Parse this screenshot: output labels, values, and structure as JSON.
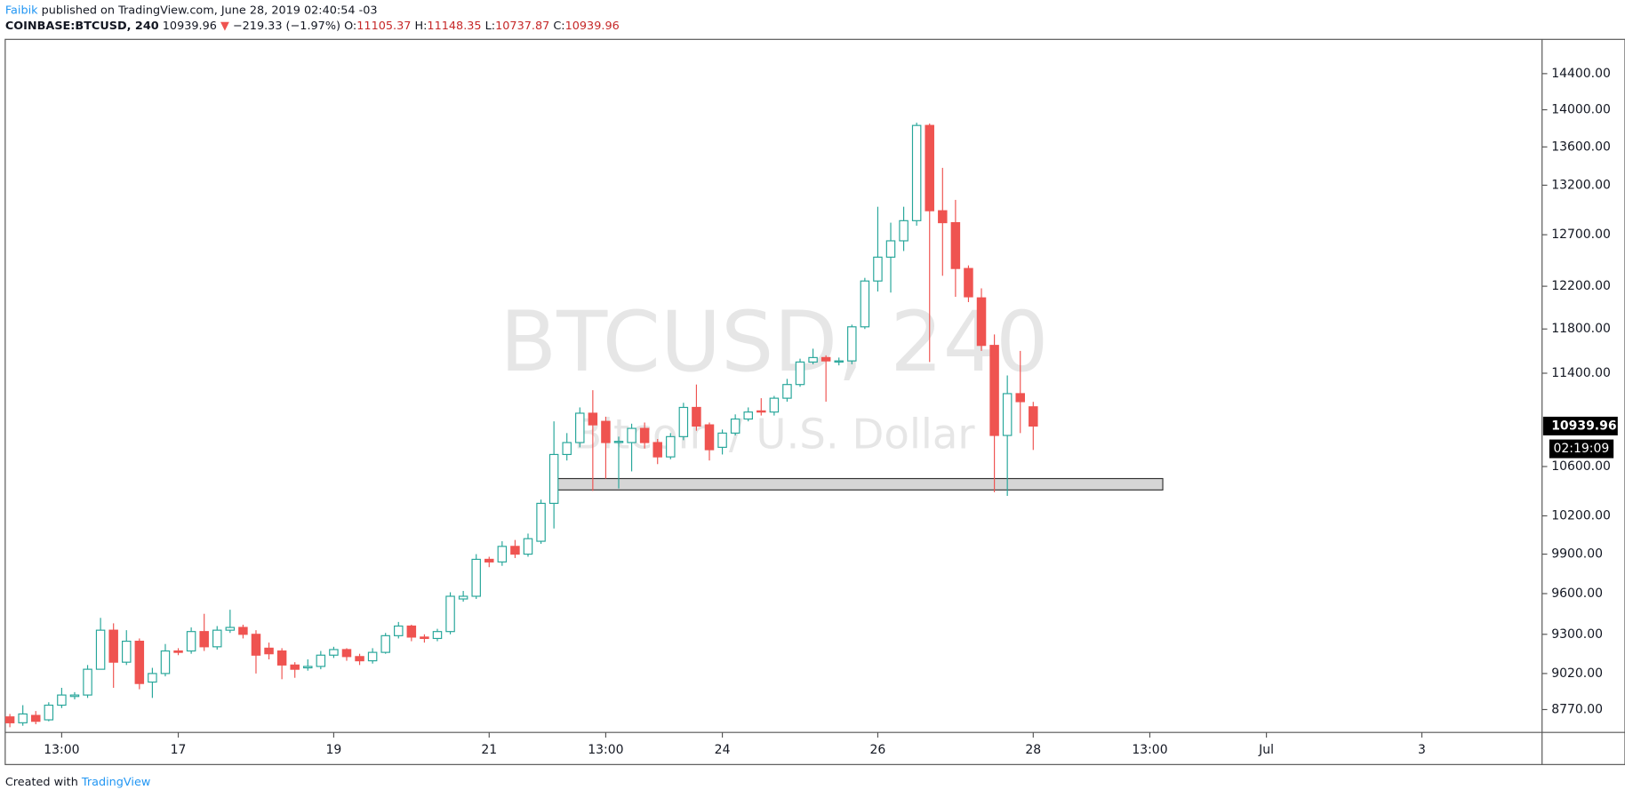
{
  "header": {
    "author": "Faibik",
    "published": "published on TradingView.com, June 28, 2019 02:40:54 -03",
    "symbol": "COINBASE:BTCUSD, 240",
    "last": "10939.96",
    "arrow": "▼",
    "change": "−219.33 (−1.97%)",
    "o_label": "O:",
    "o": "11105.37",
    "h_label": "H:",
    "h": "11148.35",
    "l_label": "L:",
    "l": "10737.87",
    "c_label": "C:",
    "c": "10939.96"
  },
  "footer": {
    "created": "Created with",
    "brand": "TradingView"
  },
  "chart_data": {
    "type": "candlestick",
    "watermark": "BTCUSD, 240",
    "watermark_sub": "Bitcoin / U.S. Dollar",
    "price_label": "10939.96",
    "countdown": "02:19:09",
    "up_color": "#26a69a",
    "down_color": "#ef5350",
    "log_scale": true,
    "ylim": [
      8615,
      14790
    ],
    "yticks": [
      8770,
      9020,
      9300,
      9600,
      9900,
      10200,
      10600,
      11400,
      11800,
      12200,
      12700,
      13200,
      13600,
      14000,
      14400
    ],
    "ytick_labels": [
      "8770.00",
      "9020.00",
      "9300.00",
      "9600.00",
      "9900.00",
      "10200.00",
      "10600.00",
      "11400.00",
      "11800.00",
      "12200.00",
      "12700.00",
      "13200.00",
      "13600.00",
      "14000.00",
      "14400.00"
    ],
    "xticks": [
      {
        "value": 4,
        "label": "13:00"
      },
      {
        "value": 13,
        "label": "17"
      },
      {
        "value": 25,
        "label": "19"
      },
      {
        "value": 37,
        "label": "21"
      },
      {
        "value": 46,
        "label": "13:00"
      },
      {
        "value": 55,
        "label": "24"
      },
      {
        "value": 67,
        "label": "26"
      },
      {
        "value": 79,
        "label": "28"
      },
      {
        "value": 88,
        "label": "13:00"
      },
      {
        "value": 97,
        "label": "Jul"
      },
      {
        "value": 109,
        "label": "3"
      }
    ],
    "zone": {
      "x": [
        41.9,
        89
      ],
      "y": [
        10408,
        10501
      ]
    },
    "open": [
      8720,
      8680,
      8730,
      8700,
      8800,
      8860,
      8870,
      9050,
      9330,
      9100,
      9250,
      8960,
      9020,
      9180,
      9180,
      9320,
      9210,
      9330,
      9350,
      9300,
      9200,
      9180,
      9080,
      9060,
      9070,
      9150,
      9190,
      9140,
      9110,
      9170,
      9290,
      9360,
      9280,
      9270,
      9320,
      9560,
      9580,
      9860,
      9840,
      9960,
      9900,
      10000,
      10300,
      10700,
      10800,
      11050,
      10980,
      10800,
      10800,
      10920,
      10800,
      10680,
      10850,
      11100,
      10950,
      10760,
      10880,
      11000,
      11070,
      11060,
      11180,
      11300,
      11500,
      11540,
      11500,
      11510,
      11820,
      12250,
      12480,
      12640,
      12840,
      13830,
      12940,
      12820,
      12370,
      12090,
      11650,
      10860,
      11220,
      11105.37
    ],
    "high": [
      8740,
      8800,
      8760,
      8820,
      8920,
      8890,
      9080,
      9420,
      9380,
      9330,
      9270,
      9060,
      9230,
      9200,
      9350,
      9450,
      9360,
      9480,
      9370,
      9330,
      9240,
      9200,
      9100,
      9120,
      9180,
      9210,
      9200,
      9160,
      9200,
      9310,
      9390,
      9370,
      9300,
      9340,
      9610,
      9620,
      9900,
      9880,
      10000,
      10010,
      10060,
      10330,
      10980,
      10880,
      11100,
      11250,
      11020,
      10850,
      10960,
      10970,
      10830,
      10880,
      11140,
      11300,
      10970,
      10910,
      11040,
      11100,
      11180,
      11200,
      11350,
      11530,
      11620,
      11560,
      11540,
      11840,
      12280,
      12980,
      12820,
      12980,
      13860,
      13850,
      13380,
      13050,
      12400,
      12180,
      11750,
      11380,
      11600,
      11148.35
    ],
    "low": [
      8650,
      8660,
      8670,
      8690,
      8780,
      8840,
      8850,
      9050,
      8920,
      9080,
      8910,
      8850,
      9000,
      9150,
      9160,
      9180,
      9190,
      9310,
      9270,
      9020,
      9120,
      8980,
      8990,
      9040,
      9050,
      9130,
      9110,
      9080,
      9090,
      9160,
      9270,
      9250,
      9240,
      9250,
      9300,
      9540,
      9560,
      9800,
      9810,
      9870,
      9880,
      9980,
      10100,
      10650,
      10760,
      10400,
      10500,
      10420,
      10560,
      10750,
      10620,
      10660,
      10820,
      10900,
      10650,
      10700,
      10860,
      10980,
      11030,
      11030,
      11150,
      11280,
      11480,
      11150,
      11470,
      11480,
      11800,
      12150,
      12140,
      12540,
      12790,
      11500,
      12300,
      12100,
      12050,
      11600,
      10390,
      10360,
      10880,
      10737.87
    ],
    "close": [
      8680,
      8740,
      8690,
      8800,
      8870,
      8870,
      9050,
      9330,
      9100,
      9250,
      8950,
      9020,
      9180,
      9170,
      9320,
      9210,
      9330,
      9350,
      9300,
      9150,
      9160,
      9080,
      9050,
      9070,
      9150,
      9190,
      9140,
      9110,
      9170,
      9290,
      9360,
      9280,
      9270,
      9320,
      9580,
      9580,
      9860,
      9840,
      9960,
      9900,
      10020,
      10300,
      10700,
      10800,
      11050,
      10950,
      10800,
      10810,
      10920,
      10800,
      10680,
      10850,
      11100,
      10940,
      10740,
      10880,
      11000,
      11060,
      11060,
      11180,
      11300,
      11500,
      11540,
      11510,
      11510,
      11820,
      12250,
      12480,
      12640,
      12840,
      13830,
      12940,
      12820,
      12370,
      12100,
      11650,
      10860,
      11220,
      11150,
      10939.96
    ]
  }
}
